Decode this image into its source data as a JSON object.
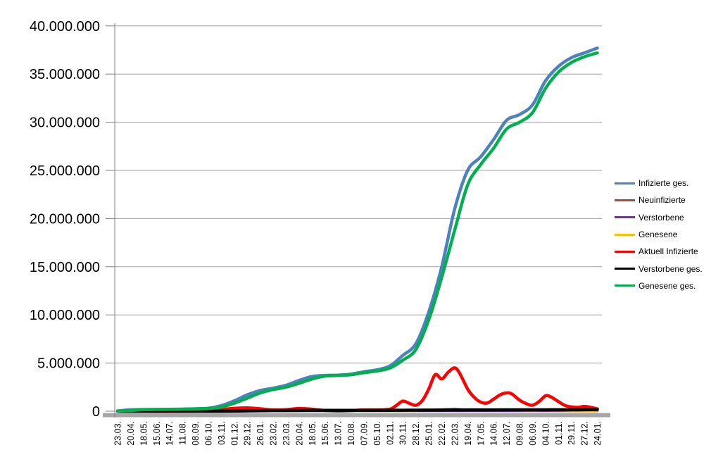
{
  "chart_data": {
    "type": "line",
    "title": "",
    "xlabel": "",
    "ylabel": "",
    "grid": "horizontal",
    "legend_position": "right",
    "ylim": [
      0,
      40000000
    ],
    "colors": {
      "background": "#FFFFFF",
      "gridline": "#A0A0A0",
      "axis": "#808080",
      "axis_shadow": "#A6A6A6",
      "label_text": "#000000"
    },
    "y_axis": {
      "ticks": [
        {
          "value": 0,
          "label": "0"
        },
        {
          "value": 5000000,
          "label": "5.000.000"
        },
        {
          "value": 10000000,
          "label": "10.000.000"
        },
        {
          "value": 15000000,
          "label": "15.000.000"
        },
        {
          "value": 20000000,
          "label": "20.000.000"
        },
        {
          "value": 25000000,
          "label": "25.000.000"
        },
        {
          "value": 30000000,
          "label": "30.000.000"
        },
        {
          "value": 35000000,
          "label": "35.000.000"
        },
        {
          "value": 40000000,
          "label": "40.000.000"
        }
      ]
    },
    "categories": [
      "23.03.",
      "20.04.",
      "18.05.",
      "15.06.",
      "14.07.",
      "11.08.",
      "08.09.",
      "06.10.",
      "03.11.",
      "01.12.",
      "29.12.",
      "26.01.",
      "23.02.",
      "23.03.",
      "20.04.",
      "18.05.",
      "15.06.",
      "13.07.",
      "10.08.",
      "07.09.",
      "05.10.",
      "02.11.",
      "30.11.",
      "28.12.",
      "25.01.",
      "22.02.",
      "22.03.",
      "19.04.",
      "17.05.",
      "14.06.",
      "12.07.",
      "09.08.",
      "06.09.",
      "04.10.",
      "01.11.",
      "29.11.",
      "27.12.",
      "24.01."
    ],
    "series": [
      {
        "name": "Infizierte ges.",
        "color": "#4F81BD",
        "stroke_width": 4.5,
        "values": [
          30000,
          145000,
          175000,
          188000,
          200000,
          220000,
          255000,
          310000,
          580000,
          1080000,
          1700000,
          2150000,
          2400000,
          2700000,
          3200000,
          3600000,
          3720000,
          3750000,
          3850000,
          4100000,
          4300000,
          4700000,
          5800000,
          7000000,
          10300000,
          15000000,
          21000000,
          25000000,
          26400000,
          28200000,
          30200000,
          30800000,
          31800000,
          34300000,
          35800000,
          36700000,
          37200000,
          37700000
        ]
      },
      {
        "name": "Neuinfizierte",
        "color": "#9E4B44",
        "stroke_width": 2.5,
        "points": [
          [
            0,
            7000
          ],
          [
            1,
            3000
          ],
          [
            2,
            700
          ],
          [
            3,
            400
          ],
          [
            4,
            500
          ],
          [
            5,
            1200
          ],
          [
            6,
            1800
          ],
          [
            7,
            4000
          ],
          [
            8,
            19000
          ],
          [
            9,
            18000
          ],
          [
            10,
            22000
          ],
          [
            11,
            12000
          ],
          [
            12,
            8000
          ],
          [
            13,
            16000
          ],
          [
            14,
            22000
          ],
          [
            15,
            8000
          ],
          [
            16,
            1500
          ],
          [
            17,
            900
          ],
          [
            18,
            5000
          ],
          [
            19,
            10000
          ],
          [
            20,
            8000
          ],
          [
            21,
            20000
          ],
          [
            22,
            50000
          ],
          [
            23,
            40000
          ],
          [
            24,
            100000
          ],
          [
            24.5,
            180000
          ],
          [
            25,
            210000
          ],
          [
            25.7,
            250000
          ],
          [
            26,
            280000
          ],
          [
            26.5,
            240000
          ],
          [
            27,
            180000
          ],
          [
            28,
            90000
          ],
          [
            29,
            90000
          ],
          [
            30,
            120000
          ],
          [
            31,
            70000
          ],
          [
            32,
            45000
          ],
          [
            33,
            110000
          ],
          [
            34,
            60000
          ],
          [
            35,
            35000
          ],
          [
            36,
            45000
          ],
          [
            37,
            20000
          ]
        ]
      },
      {
        "name": "Verstorbene",
        "color": "#7030A0",
        "stroke_width": 2.5,
        "points": [
          [
            0,
            200
          ],
          [
            2,
            250
          ],
          [
            4,
            20
          ],
          [
            6,
            10
          ],
          [
            8,
            150
          ],
          [
            10,
            800
          ],
          [
            12,
            500
          ],
          [
            14,
            250
          ],
          [
            16,
            80
          ],
          [
            18,
            30
          ],
          [
            20,
            70
          ],
          [
            22,
            300
          ],
          [
            24,
            200
          ],
          [
            26,
            300
          ],
          [
            28,
            150
          ],
          [
            30,
            120
          ],
          [
            32,
            120
          ],
          [
            34,
            120
          ],
          [
            36,
            160
          ],
          [
            37,
            120
          ]
        ]
      },
      {
        "name": "Genesene",
        "color": "#FFC000",
        "stroke_width": 2.5,
        "points": [
          [
            0,
            2000
          ],
          [
            1,
            4000
          ],
          [
            2,
            2000
          ],
          [
            3,
            600
          ],
          [
            4,
            400
          ],
          [
            5,
            900
          ],
          [
            6,
            1400
          ],
          [
            7,
            2500
          ],
          [
            8,
            10000
          ],
          [
            9,
            17000
          ],
          [
            10,
            20000
          ],
          [
            11,
            15000
          ],
          [
            12,
            8000
          ],
          [
            13,
            12000
          ],
          [
            14,
            20000
          ],
          [
            15,
            12000
          ],
          [
            16,
            3500
          ],
          [
            17,
            900
          ],
          [
            18,
            3000
          ],
          [
            19,
            8000
          ],
          [
            20,
            7000
          ],
          [
            21,
            12000
          ],
          [
            22,
            35000
          ],
          [
            23,
            40000
          ],
          [
            24,
            70000
          ],
          [
            25,
            160000
          ],
          [
            26,
            240000
          ],
          [
            26.5,
            250000
          ],
          [
            27,
            210000
          ],
          [
            27.5,
            230000
          ],
          [
            28,
            120000
          ],
          [
            29,
            80000
          ],
          [
            30,
            100000
          ],
          [
            31,
            80000
          ],
          [
            32,
            55000
          ],
          [
            33,
            80000
          ],
          [
            34,
            70000
          ],
          [
            35,
            40000
          ],
          [
            36,
            35000
          ],
          [
            37,
            25000
          ]
        ]
      },
      {
        "name": "Aktuell Infizierte",
        "color": "#FF0000",
        "stroke_width": 4.5,
        "points": [
          [
            0,
            20000
          ],
          [
            1,
            48000
          ],
          [
            2,
            22000
          ],
          [
            3,
            9000
          ],
          [
            4,
            9500
          ],
          [
            5,
            14000
          ],
          [
            6,
            22000
          ],
          [
            7,
            48000
          ],
          [
            8,
            170000
          ],
          [
            9,
            300000
          ],
          [
            10,
            350000
          ],
          [
            11,
            255000
          ],
          [
            12,
            135000
          ],
          [
            13,
            165000
          ],
          [
            14,
            280000
          ],
          [
            15,
            215000
          ],
          [
            16,
            70000
          ],
          [
            17,
            28000
          ],
          [
            18,
            60000
          ],
          [
            19,
            138000
          ],
          [
            20,
            130000
          ],
          [
            21,
            215000
          ],
          [
            21.5,
            600000
          ],
          [
            22,
            1050000
          ],
          [
            22.5,
            820000
          ],
          [
            23,
            620000
          ],
          [
            23.5,
            1100000
          ],
          [
            24,
            2300000
          ],
          [
            24.5,
            3800000
          ],
          [
            25,
            3350000
          ],
          [
            25.5,
            4050000
          ],
          [
            26,
            4500000
          ],
          [
            26.4,
            3900000
          ],
          [
            27,
            2300000
          ],
          [
            27.5,
            1450000
          ],
          [
            28,
            950000
          ],
          [
            28.5,
            850000
          ],
          [
            29,
            1250000
          ],
          [
            29.5,
            1700000
          ],
          [
            30,
            1900000
          ],
          [
            30.4,
            1800000
          ],
          [
            31,
            1150000
          ],
          [
            31.5,
            800000
          ],
          [
            32,
            620000
          ],
          [
            32.5,
            1000000
          ],
          [
            33,
            1600000
          ],
          [
            33.4,
            1500000
          ],
          [
            34,
            1000000
          ],
          [
            34.5,
            600000
          ],
          [
            35,
            450000
          ],
          [
            35.5,
            400000
          ],
          [
            36,
            500000
          ],
          [
            36.5,
            400000
          ],
          [
            37,
            250000
          ]
        ]
      },
      {
        "name": "Verstorbene ges.",
        "color": "#000000",
        "stroke_width": 4.5,
        "values": [
          500,
          4500,
          8000,
          8800,
          9100,
          9200,
          9300,
          9500,
          10500,
          17000,
          32000,
          54000,
          69000,
          75000,
          81000,
          87000,
          90000,
          91000,
          92000,
          92500,
          94000,
          96000,
          101000,
          111000,
          117000,
          121000,
          127000,
          133000,
          138000,
          140000,
          142000,
          144500,
          147500,
          150000,
          153000,
          156500,
          161000,
          165000
        ]
      },
      {
        "name": "Genesene ges.",
        "color": "#00B050",
        "stroke_width": 4.5,
        "values": [
          10000,
          80000,
          160000,
          178000,
          190000,
          208000,
          240000,
          285000,
          430000,
          830000,
          1350000,
          1900000,
          2250000,
          2500000,
          2900000,
          3350000,
          3640000,
          3710000,
          3790000,
          4000000,
          4180000,
          4480000,
          5300000,
          6400000,
          9500000,
          13900000,
          18800000,
          23500000,
          25600000,
          27300000,
          29300000,
          30000000,
          31000000,
          33500000,
          35200000,
          36200000,
          36800000,
          37200000
        ]
      }
    ]
  }
}
